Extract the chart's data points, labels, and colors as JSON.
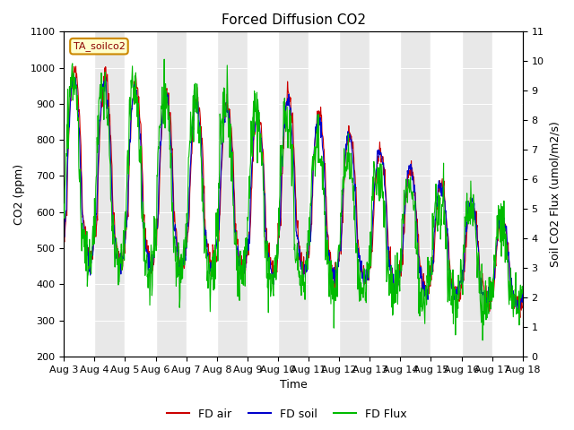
{
  "title": "Forced Diffusion CO2",
  "xlabel": "Time",
  "ylabel_left": "CO2 (ppm)",
  "ylabel_right": "Soil CO2 Flux (umol/m2/s)",
  "ylim_left": [
    200,
    1100
  ],
  "ylim_right": [
    0.0,
    11.0
  ],
  "yticks_left": [
    200,
    300,
    400,
    500,
    600,
    700,
    800,
    900,
    1000,
    1100
  ],
  "yticks_right": [
    0.0,
    1.0,
    2.0,
    3.0,
    4.0,
    5.0,
    6.0,
    7.0,
    8.0,
    9.0,
    10.0,
    11.0
  ],
  "legend_box_label": "TA_soilco2",
  "legend_items": [
    "FD air",
    "FD soil",
    "FD Flux"
  ],
  "legend_colors": [
    "#cc0000",
    "#0000cc",
    "#00bb00"
  ],
  "background_color": "#ffffff",
  "plot_bg_color": "#e8e8e8",
  "white_band_color": "#ffffff",
  "title_fontsize": 11,
  "axis_fontsize": 9,
  "tick_fontsize": 8,
  "x_tick_days": [
    3,
    4,
    5,
    6,
    7,
    8,
    9,
    10,
    11,
    12,
    13,
    14,
    15,
    16,
    17,
    18
  ],
  "x_tick_labels": [
    "Aug 3",
    "Aug 4",
    "Aug 5",
    "Aug 6",
    "Aug 7",
    "Aug 8",
    "Aug 9",
    "Aug 10",
    "Aug 11",
    "Aug 12",
    "Aug 13",
    "Aug 14",
    "Aug 15",
    "Aug 16",
    "Aug 17",
    "Aug 18"
  ]
}
